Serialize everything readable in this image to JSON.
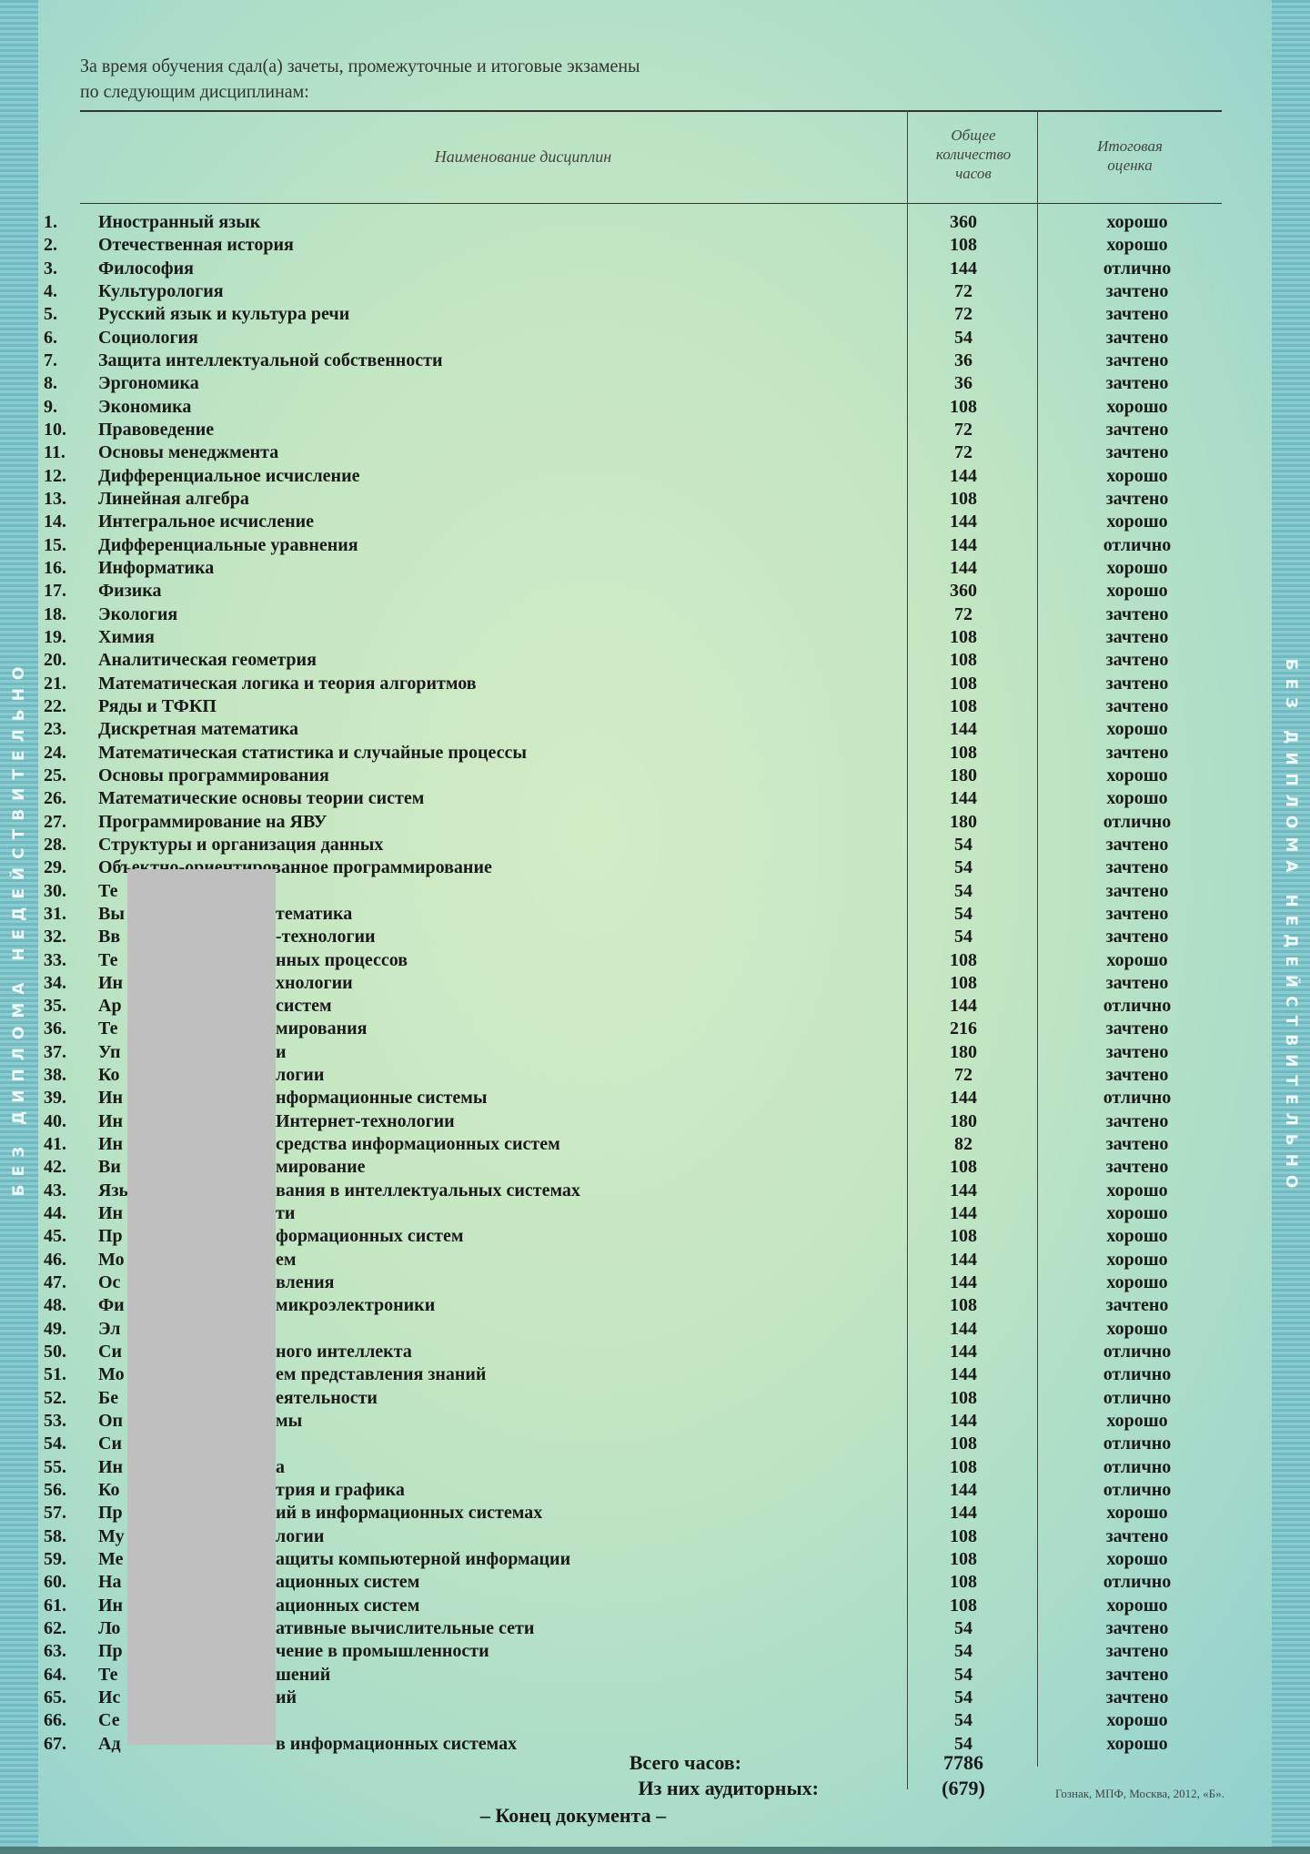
{
  "side_text": "БЕЗ ДИПЛОМА НЕДЕЙСТВИТЕЛЬНО",
  "intro": [
    "За время обучения сдал(а) зачеты, промежуточные и итоговые экзамены",
    "по следующим дисциплинам:"
  ],
  "headers": {
    "name": "Наименование дисциплин",
    "hours": [
      "Общее",
      "количество",
      "часов"
    ],
    "grade": [
      "Итоговая",
      "оценка"
    ]
  },
  "rows": [
    {
      "n": "1.",
      "pre": "Иностранный язык",
      "post": "",
      "h": "360",
      "g": "хорошо"
    },
    {
      "n": "2.",
      "pre": "Отечественная история",
      "post": "",
      "h": "108",
      "g": "хорошо"
    },
    {
      "n": "3.",
      "pre": "Философия",
      "post": "",
      "h": "144",
      "g": "отлично"
    },
    {
      "n": "4.",
      "pre": "Культурология",
      "post": "",
      "h": "72",
      "g": "зачтено"
    },
    {
      "n": "5.",
      "pre": "Русский язык и культура речи",
      "post": "",
      "h": "72",
      "g": "зачтено"
    },
    {
      "n": "6.",
      "pre": "Социология",
      "post": "",
      "h": "54",
      "g": "зачтено"
    },
    {
      "n": "7.",
      "pre": "Защита интеллектуальной собственности",
      "post": "",
      "h": "36",
      "g": "зачтено"
    },
    {
      "n": "8.",
      "pre": "Эргономика",
      "post": "",
      "h": "36",
      "g": "зачтено"
    },
    {
      "n": "9.",
      "pre": "Экономика",
      "post": "",
      "h": "108",
      "g": "хорошо"
    },
    {
      "n": "10.",
      "pre": "Правоведение",
      "post": "",
      "h": "72",
      "g": "зачтено"
    },
    {
      "n": "11.",
      "pre": "Основы менеджмента",
      "post": "",
      "h": "72",
      "g": "зачтено"
    },
    {
      "n": "12.",
      "pre": "Дифференциальное исчисление",
      "post": "",
      "h": "144",
      "g": "хорошо"
    },
    {
      "n": "13.",
      "pre": "Линейная алгебра",
      "post": "",
      "h": "108",
      "g": "зачтено"
    },
    {
      "n": "14.",
      "pre": "Интегральное исчисление",
      "post": "",
      "h": "144",
      "g": "хорошо"
    },
    {
      "n": "15.",
      "pre": "Дифференциальные уравнения",
      "post": "",
      "h": "144",
      "g": "отлично"
    },
    {
      "n": "16.",
      "pre": "Информатика",
      "post": "",
      "h": "144",
      "g": "хорошо"
    },
    {
      "n": "17.",
      "pre": "Физика",
      "post": "",
      "h": "360",
      "g": "хорошо"
    },
    {
      "n": "18.",
      "pre": "Экология",
      "post": "",
      "h": "72",
      "g": "зачтено"
    },
    {
      "n": "19.",
      "pre": "Химия",
      "post": "",
      "h": "108",
      "g": "зачтено"
    },
    {
      "n": "20.",
      "pre": "Аналитическая геометрия",
      "post": "",
      "h": "108",
      "g": "зачтено"
    },
    {
      "n": "21.",
      "pre": "Математическая логика и теория алгоритмов",
      "post": "",
      "h": "108",
      "g": "зачтено"
    },
    {
      "n": "22.",
      "pre": "Ряды и ТФКП",
      "post": "",
      "h": "108",
      "g": "зачтено"
    },
    {
      "n": "23.",
      "pre": "Дискретная математика",
      "post": "",
      "h": "144",
      "g": "хорошо"
    },
    {
      "n": "24.",
      "pre": "Математическая статистика и случайные процессы",
      "post": "",
      "h": "108",
      "g": "зачтено"
    },
    {
      "n": "25.",
      "pre": "Основы программирования",
      "post": "",
      "h": "180",
      "g": "хорошо"
    },
    {
      "n": "26.",
      "pre": "Математические основы теории систем",
      "post": "",
      "h": "144",
      "g": "хорошо"
    },
    {
      "n": "27.",
      "pre": "Программирование на ЯВУ",
      "post": "",
      "h": "180",
      "g": "отлично"
    },
    {
      "n": "28.",
      "pre": "Структуры и организация данных",
      "post": "",
      "h": "54",
      "g": "зачтено"
    },
    {
      "n": "29.",
      "pre": "Объектно-ориентированное программирование",
      "post": "",
      "h": "54",
      "g": "зачтено"
    },
    {
      "n": "30.",
      "pre": "Те",
      "post": "",
      "h": "54",
      "g": "зачтено"
    },
    {
      "n": "31.",
      "pre": "Вы",
      "post": "тематика",
      "h": "54",
      "g": "зачтено"
    },
    {
      "n": "32.",
      "pre": "Вв",
      "post": "-технологии",
      "h": "54",
      "g": "зачтено"
    },
    {
      "n": "33.",
      "pre": "Те",
      "post": "нных процессов",
      "h": "108",
      "g": "хорошо"
    },
    {
      "n": "34.",
      "pre": "Ин",
      "post": "хнологии",
      "h": "108",
      "g": "зачтено"
    },
    {
      "n": "35.",
      "pre": "Ар",
      "post": "систем",
      "h": "144",
      "g": "отлично"
    },
    {
      "n": "36.",
      "pre": "Те",
      "post": "мирования",
      "h": "216",
      "g": "зачтено"
    },
    {
      "n": "37.",
      "pre": "Уп",
      "post": "и",
      "h": "180",
      "g": "зачтено"
    },
    {
      "n": "38.",
      "pre": "Ко",
      "post": "логии",
      "h": "72",
      "g": "зачтено"
    },
    {
      "n": "39.",
      "pre": "Ин",
      "post": "нформационные системы",
      "h": "144",
      "g": "отлично"
    },
    {
      "n": "40.",
      "pre": "Ин",
      "post": "Интернет-технологии",
      "h": "180",
      "g": "зачтено"
    },
    {
      "n": "41.",
      "pre": "Ин",
      "post": "средства информационных систем",
      "h": "82",
      "g": "зачтено"
    },
    {
      "n": "42.",
      "pre": "Ви",
      "post": "мирование",
      "h": "108",
      "g": "зачтено"
    },
    {
      "n": "43.",
      "pre": "Язы",
      "post": "вания в интеллектуальных системах",
      "h": "144",
      "g": "хорошо"
    },
    {
      "n": "44.",
      "pre": "Ин",
      "post": "ти",
      "h": "144",
      "g": "хорошо"
    },
    {
      "n": "45.",
      "pre": "Пр",
      "post": "формационных систем",
      "h": "108",
      "g": "хорошо"
    },
    {
      "n": "46.",
      "pre": "Мо",
      "post": "ем",
      "h": "144",
      "g": "хорошо"
    },
    {
      "n": "47.",
      "pre": "Ос",
      "post": "вления",
      "h": "144",
      "g": "хорошо"
    },
    {
      "n": "48.",
      "pre": "Фи",
      "post": "микроэлектроники",
      "h": "108",
      "g": "зачтено"
    },
    {
      "n": "49.",
      "pre": "Эл",
      "post": "",
      "h": "144",
      "g": "хорошо"
    },
    {
      "n": "50.",
      "pre": "Си",
      "post": "ного интеллекта",
      "h": "144",
      "g": "отлично"
    },
    {
      "n": "51.",
      "pre": "Мо",
      "post": "ем представления знаний",
      "h": "144",
      "g": "отлично"
    },
    {
      "n": "52.",
      "pre": "Бе",
      "post": "еятельности",
      "h": "108",
      "g": "отлично"
    },
    {
      "n": "53.",
      "pre": "Оп",
      "post": "мы",
      "h": "144",
      "g": "хорошо"
    },
    {
      "n": "54.",
      "pre": "Си",
      "post": "",
      "h": "108",
      "g": "отлично"
    },
    {
      "n": "55.",
      "pre": "Ин",
      "post": "а",
      "h": "108",
      "g": "отлично"
    },
    {
      "n": "56.",
      "pre": "Ко",
      "post": "трия и графика",
      "h": "144",
      "g": "отлично"
    },
    {
      "n": "57.",
      "pre": "Пр",
      "post": "ий в информационных системах",
      "h": "144",
      "g": "хорошо"
    },
    {
      "n": "58.",
      "pre": "Му",
      "post": "логии",
      "h": "108",
      "g": "зачтено"
    },
    {
      "n": "59.",
      "pre": "Ме",
      "post": "ащиты компьютерной информации",
      "h": "108",
      "g": "хорошо"
    },
    {
      "n": "60.",
      "pre": "На",
      "post": "ационных систем",
      "h": "108",
      "g": "отлично"
    },
    {
      "n": "61.",
      "pre": "Ин",
      "post": "ационных систем",
      "h": "108",
      "g": "хорошо"
    },
    {
      "n": "62.",
      "pre": "Ло",
      "post": "ативные вычислительные сети",
      "h": "54",
      "g": "зачтено"
    },
    {
      "n": "63.",
      "pre": "Пр",
      "post": "чение в промышленности",
      "h": "54",
      "g": "зачтено"
    },
    {
      "n": "64.",
      "pre": "Те",
      "post": "шений",
      "h": "54",
      "g": "зачтено"
    },
    {
      "n": "65.",
      "pre": "Ис",
      "post": "ий",
      "h": "54",
      "g": "зачтено"
    },
    {
      "n": "66.",
      "pre": "Се",
      "post": "",
      "h": "54",
      "g": "хорошо"
    },
    {
      "n": "67.",
      "pre": "Ад",
      "post": "в информационных системах",
      "h": "54",
      "g": "хорошо"
    }
  ],
  "totals": {
    "total_label": "Всего часов:",
    "total_value": "7786",
    "aud_label": "Из них аудиторных:",
    "aud_value": "(679)"
  },
  "end_text": "– Конец документа –",
  "printer": "Гознак, МПФ, Москва, 2012, «Б».",
  "colors": {
    "paper_center": "#d2ecc6",
    "paper_edge": "#8dcfcf",
    "redaction": "#bfbfbf"
  }
}
